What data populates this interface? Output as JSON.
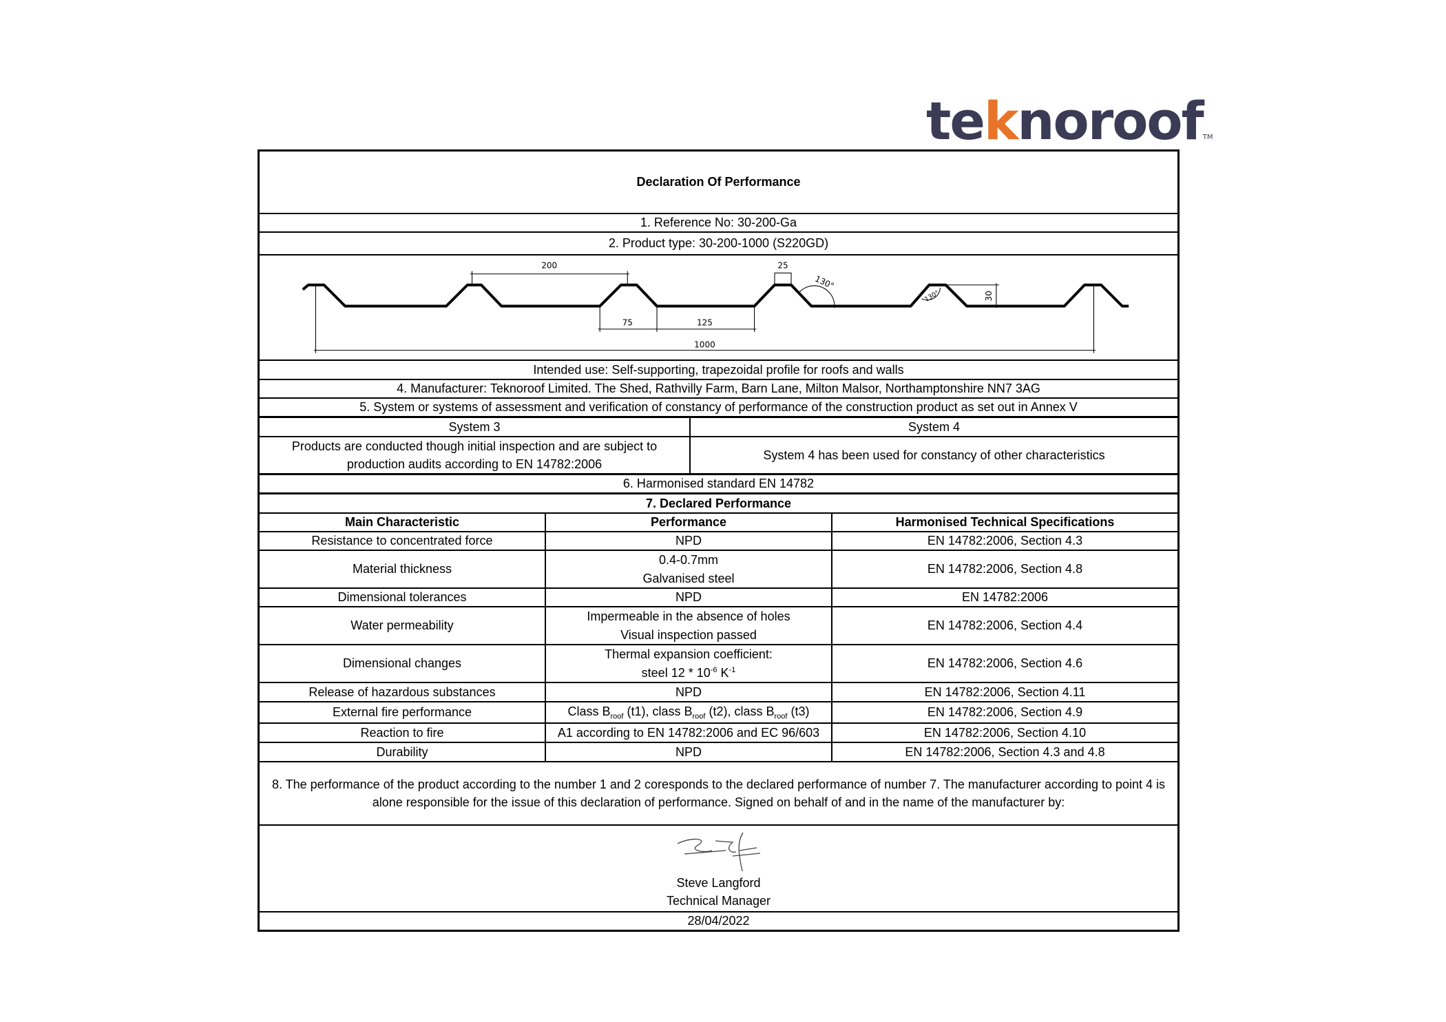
{
  "logo": {
    "pre": "te",
    "k": "k",
    "post": "noroof",
    "tm": "TM",
    "accent": "#e8742a",
    "color": "#3b3b55"
  },
  "title": "Declaration Of Performance",
  "reference": "1. Reference No: 30-200-Ga",
  "product_type": "2. Product type: 30-200-1000 (S220GD)",
  "diagram": {
    "dims": {
      "pitch": "200",
      "crest": "25",
      "angle_top": "130°",
      "angle_small": "130°",
      "height": "30",
      "valley": "75",
      "flat": "125",
      "cover": "1000"
    }
  },
  "intended_use": "Intended use: Self-supporting, trapezoidal profile for roofs and walls",
  "manufacturer": "4. Manufacturer: Teknoroof Limited. The Shed, Rathvilly Farm, Barn Lane, Milton Malsor, Northamptonshire NN7 3AG",
  "systems_heading": "5. System or systems of assessment and verification of constancy of performance of the construction product as set out in Annex V",
  "systems": [
    {
      "name": "System 3",
      "text": "Products are conducted though initial inspection and are subject to production audits according to EN 14782:2006"
    },
    {
      "name": "System 4",
      "text": "System 4 has been used for constancy of other characteristics"
    }
  ],
  "harmonised": "6. Harmonised standard EN 14782",
  "declared_heading": "7. Declared Performance",
  "columns": [
    "Main Characteristic",
    "Performance",
    "Harmonised Technical Specifications"
  ],
  "rows": [
    {
      "char": "Resistance to concentrated force",
      "perf": "NPD",
      "spec": "EN 14782:2006, Section 4.3"
    },
    {
      "char": "Material thickness",
      "perf": "0.4-0.7mm",
      "perf2": "Galvanised steel",
      "spec": "EN 14782:2006, Section 4.8"
    },
    {
      "char": "Dimensional tolerances",
      "perf": "NPD",
      "spec": "EN 14782:2006"
    },
    {
      "char": "Water permeability",
      "perf": "Impermeable in the absence of holes",
      "perf2": "Visual inspection passed",
      "spec": "EN 14782:2006, Section 4.4"
    },
    {
      "char": "Dimensional changes",
      "perf": "Thermal expansion coefficient:",
      "perf2a": "steel 12 * 10",
      "perf2sup1": "-6",
      "perf2b": " K",
      "perf2sup2": "-1",
      "spec": "EN 14782:2006, Section 4.6"
    },
    {
      "char": "Release of hazardous substances",
      "perf": "NPD",
      "spec": "EN 14782:2006, Section 4.11"
    },
    {
      "char": "External fire performance",
      "p1": "Class B",
      "sub": "roof",
      "p2": " (t1), class B",
      "p3": " (t2), class B",
      "p4": " (t3)",
      "spec": "EN 14782:2006, Section 4.9"
    },
    {
      "char": "Reaction to fire",
      "perf": "A1 according to EN 14782:2006 and EC 96/603",
      "spec": "EN 14782:2006, Section 4.10"
    },
    {
      "char": "Durability",
      "perf": "NPD",
      "spec": "EN 14782:2006, Section 4.3 and 4.8"
    }
  ],
  "statement": "8. The performance of the product according to the number 1 and 2 coresponds to the declared performance of number 7. The manufacturer according to point 4 is alone responsible for the issue of this declaration of performance. Signed on behalf of and in the name of the manufacturer by:",
  "signatory": {
    "name": "Steve Langford",
    "role": "Technical Manager",
    "date": "28/04/2022"
  }
}
